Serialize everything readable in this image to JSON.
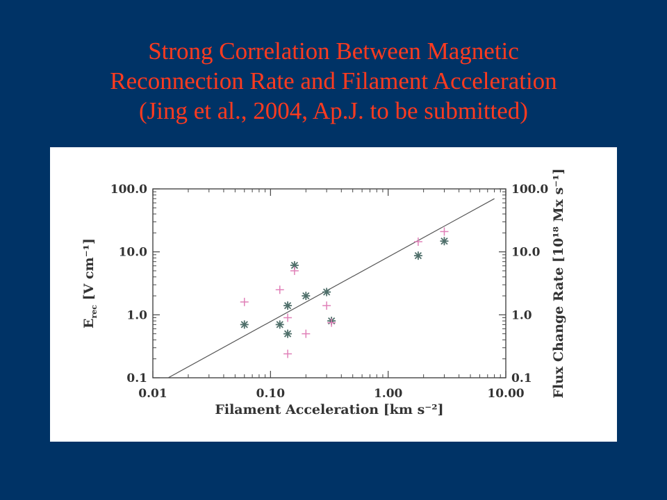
{
  "slide": {
    "title_lines": [
      "Strong Correlation Between Magnetic",
      "Reconnection Rate and Filament Acceleration",
      "(Jing et al., 2004, Ap.J. to be submitted)"
    ],
    "title_color": "#ff3b1f",
    "background_color": "#003366"
  },
  "chart_data": {
    "type": "scatter",
    "title": "",
    "xlabel": "Filament Acceleration [km s⁻²]",
    "ylabel_left": "E_rec [V cm⁻¹]",
    "ylabel_right": "Flux Change Rate [10¹⁸ Mx s⁻¹]",
    "xscale": "log",
    "yscale": "log",
    "xlim": [
      0.01,
      10
    ],
    "ylim": [
      0.1,
      100
    ],
    "x_ticks": [
      "0.01",
      "0.10",
      "1.00",
      "10.00"
    ],
    "y_ticks": [
      "0.1",
      "1.0",
      "10.0",
      "100.0"
    ],
    "right_y_ticks": [
      "0.1",
      "1.0",
      "10.0",
      "100.0"
    ],
    "grid": false,
    "series": [
      {
        "marker": "asterisk",
        "axis": "right",
        "color": "#4f6f6a",
        "points": [
          {
            "x": 0.06,
            "y": 0.7
          },
          {
            "x": 0.12,
            "y": 0.7
          },
          {
            "x": 0.14,
            "y": 0.5
          },
          {
            "x": 0.14,
            "y": 1.4
          },
          {
            "x": 0.16,
            "y": 6.1
          },
          {
            "x": 0.2,
            "y": 2.0
          },
          {
            "x": 0.3,
            "y": 2.3
          },
          {
            "x": 0.33,
            "y": 0.8
          },
          {
            "x": 1.8,
            "y": 8.7
          },
          {
            "x": 3.0,
            "y": 14.8
          }
        ]
      },
      {
        "marker": "plus",
        "axis": "left",
        "color": "#e080b8",
        "points": [
          {
            "x": 0.06,
            "y": 1.6
          },
          {
            "x": 0.12,
            "y": 2.5
          },
          {
            "x": 0.14,
            "y": 0.9
          },
          {
            "x": 0.14,
            "y": 0.24
          },
          {
            "x": 0.16,
            "y": 5.0
          },
          {
            "x": 0.2,
            "y": 0.5
          },
          {
            "x": 0.3,
            "y": 1.4
          },
          {
            "x": 0.33,
            "y": 0.75
          },
          {
            "x": 1.8,
            "y": 14.5
          },
          {
            "x": 3.0,
            "y": 21.0
          }
        ]
      }
    ],
    "fit_line": {
      "x": [
        0.0135,
        8.0
      ],
      "y": [
        0.1,
        70.0
      ],
      "color": "#555555"
    }
  }
}
